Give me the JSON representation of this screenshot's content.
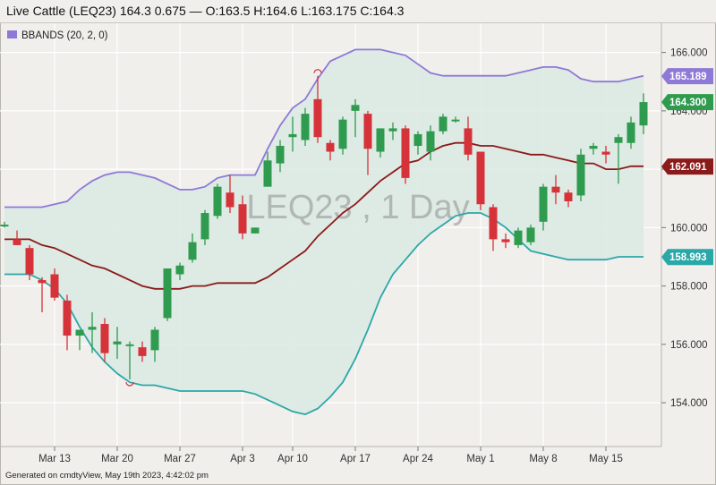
{
  "title": "Live Cattle (LEQ23) 164.3 0.675 — O:163.5 H:164.6 L:163.175 C:164.3",
  "footer": "Generated on cmdtyView, May 19th 2023, 4:42:02 pm",
  "watermark": "LEQ23 , 1 Day",
  "legend": {
    "label": "BBANDS (20, 2, 0)",
    "color": "#8e79d6"
  },
  "colors": {
    "up": "#2e9b4f",
    "down": "#d6323a",
    "upper_band": "#8e79d6",
    "middle_band": "#8b1a1a",
    "lower_band": "#2aa8a8",
    "band_fill": "#dbe9e3",
    "background": "#f1efeb",
    "grid": "#ffffff"
  },
  "price_labels": [
    {
      "value": 165.189,
      "text": "165.189",
      "color": "#8e79d6"
    },
    {
      "value": 164.3,
      "text": "164.300",
      "color": "#2e9b4f"
    },
    {
      "value": 162.091,
      "text": "162.091",
      "color": "#8b1a1a"
    },
    {
      "value": 158.993,
      "text": "158.993",
      "color": "#2aa8a8"
    }
  ],
  "chart_data": {
    "type": "candlestick",
    "y_axis": {
      "min": 152.5,
      "max": 167,
      "ticks": [
        154.0,
        156.0,
        158.0,
        160.0,
        162.0,
        164.0,
        166.0
      ],
      "tick_labels": [
        "154.000",
        "156.000",
        "158.000",
        "160.000",
        "162.000",
        "164.000",
        "166.000"
      ]
    },
    "x_axis_labels": [
      {
        "date": "2023-03-13",
        "label": "Mar 13"
      },
      {
        "date": "2023-03-20",
        "label": "Mar 20"
      },
      {
        "date": "2023-03-27",
        "label": "Mar 27"
      },
      {
        "date": "2023-04-03",
        "label": "Apr 3"
      },
      {
        "date": "2023-04-10",
        "label": "Apr 10"
      },
      {
        "date": "2023-04-17",
        "label": "Apr 17"
      },
      {
        "date": "2023-04-24",
        "label": "Apr 24"
      },
      {
        "date": "2023-05-01",
        "label": "May 1"
      },
      {
        "date": "2023-05-08",
        "label": "May 8"
      },
      {
        "date": "2023-05-15",
        "label": "May 15"
      }
    ],
    "grid": true,
    "legend": "top-left",
    "candles": [
      {
        "date": "2023-03-07",
        "open": 160.1,
        "high": 160.2,
        "low": 160.0,
        "close": 160.1
      },
      {
        "date": "2023-03-08",
        "open": 159.6,
        "high": 159.9,
        "low": 159.4,
        "close": 159.4
      },
      {
        "date": "2023-03-09",
        "open": 159.3,
        "high": 159.4,
        "low": 158.2,
        "close": 158.4
      },
      {
        "date": "2023-03-10",
        "open": 158.2,
        "high": 158.3,
        "low": 157.1,
        "close": 158.1
      },
      {
        "date": "2023-03-13",
        "open": 158.4,
        "high": 158.6,
        "low": 157.5,
        "close": 157.6
      },
      {
        "date": "2023-03-14",
        "open": 157.5,
        "high": 157.7,
        "low": 155.8,
        "close": 156.3
      },
      {
        "date": "2023-03-15",
        "open": 156.3,
        "high": 156.5,
        "low": 155.8,
        "close": 156.5
      },
      {
        "date": "2023-03-16",
        "open": 156.5,
        "high": 157.1,
        "low": 155.7,
        "close": 156.6
      },
      {
        "date": "2023-03-17",
        "open": 156.7,
        "high": 156.9,
        "low": 155.4,
        "close": 155.7
      },
      {
        "date": "2023-03-20",
        "open": 156.0,
        "high": 156.6,
        "low": 155.5,
        "close": 156.1
      },
      {
        "date": "2023-03-21",
        "open": 156.0,
        "high": 156.1,
        "low": 154.8,
        "close": 156.0
      },
      {
        "date": "2023-03-22",
        "open": 155.9,
        "high": 156.1,
        "low": 155.4,
        "close": 155.6
      },
      {
        "date": "2023-03-23",
        "open": 155.8,
        "high": 156.6,
        "low": 155.4,
        "close": 156.5
      },
      {
        "date": "2023-03-24",
        "open": 156.9,
        "high": 158.6,
        "low": 156.8,
        "close": 158.6
      },
      {
        "date": "2023-03-27",
        "open": 158.4,
        "high": 158.8,
        "low": 158.2,
        "close": 158.7
      },
      {
        "date": "2023-03-28",
        "open": 158.9,
        "high": 159.8,
        "low": 158.8,
        "close": 159.5
      },
      {
        "date": "2023-03-29",
        "open": 159.6,
        "high": 160.6,
        "low": 159.4,
        "close": 160.5
      },
      {
        "date": "2023-03-30",
        "open": 160.4,
        "high": 161.5,
        "low": 160.3,
        "close": 161.4
      },
      {
        "date": "2023-03-31",
        "open": 161.2,
        "high": 161.8,
        "low": 160.5,
        "close": 160.7
      },
      {
        "date": "2023-04-03",
        "open": 160.8,
        "high": 161.1,
        "low": 159.6,
        "close": 159.8
      },
      {
        "date": "2023-04-04",
        "open": 159.8,
        "high": 160.0,
        "low": 159.8,
        "close": 160.0
      },
      {
        "date": "2023-04-05",
        "open": 161.4,
        "high": 162.6,
        "low": 161.4,
        "close": 162.3
      },
      {
        "date": "2023-04-06",
        "open": 162.2,
        "high": 163.0,
        "low": 161.9,
        "close": 162.8
      },
      {
        "date": "2023-04-10",
        "open": 163.1,
        "high": 163.8,
        "low": 162.6,
        "close": 163.2
      },
      {
        "date": "2023-04-11",
        "open": 163.0,
        "high": 164.1,
        "low": 162.8,
        "close": 163.9
      },
      {
        "date": "2023-04-12",
        "open": 164.4,
        "high": 165.2,
        "low": 162.9,
        "close": 163.1
      },
      {
        "date": "2023-04-13",
        "open": 162.9,
        "high": 163.0,
        "low": 162.3,
        "close": 162.6
      },
      {
        "date": "2023-04-14",
        "open": 162.7,
        "high": 163.8,
        "low": 162.5,
        "close": 163.7
      },
      {
        "date": "2023-04-17",
        "open": 164.0,
        "high": 164.4,
        "low": 163.1,
        "close": 164.2
      },
      {
        "date": "2023-04-18",
        "open": 163.9,
        "high": 164.0,
        "low": 161.8,
        "close": 162.7
      },
      {
        "date": "2023-04-19",
        "open": 162.6,
        "high": 163.4,
        "low": 162.4,
        "close": 163.4
      },
      {
        "date": "2023-04-20",
        "open": 163.3,
        "high": 163.6,
        "low": 163.0,
        "close": 163.4
      },
      {
        "date": "2023-04-21",
        "open": 163.4,
        "high": 163.5,
        "low": 161.5,
        "close": 161.7
      },
      {
        "date": "2023-04-24",
        "open": 162.8,
        "high": 163.3,
        "low": 162.5,
        "close": 163.2
      },
      {
        "date": "2023-04-25",
        "open": 162.6,
        "high": 163.5,
        "low": 162.3,
        "close": 163.3
      },
      {
        "date": "2023-04-26",
        "open": 163.3,
        "high": 163.9,
        "low": 163.2,
        "close": 163.8
      },
      {
        "date": "2023-04-27",
        "open": 163.7,
        "high": 163.8,
        "low": 163.6,
        "close": 163.7
      },
      {
        "date": "2023-04-28",
        "open": 163.4,
        "high": 163.8,
        "low": 162.3,
        "close": 162.5
      },
      {
        "date": "2023-05-01",
        "open": 162.6,
        "high": 162.6,
        "low": 160.6,
        "close": 160.8
      },
      {
        "date": "2023-05-02",
        "open": 160.7,
        "high": 160.8,
        "low": 159.2,
        "close": 159.6
      },
      {
        "date": "2023-05-03",
        "open": 159.6,
        "high": 159.8,
        "low": 159.3,
        "close": 159.5
      },
      {
        "date": "2023-05-04",
        "open": 159.4,
        "high": 160.0,
        "low": 159.3,
        "close": 159.9
      },
      {
        "date": "2023-05-05",
        "open": 159.5,
        "high": 160.1,
        "low": 159.4,
        "close": 160.0
      },
      {
        "date": "2023-05-08",
        "open": 160.2,
        "high": 161.5,
        "low": 159.9,
        "close": 161.4
      },
      {
        "date": "2023-05-09",
        "open": 161.4,
        "high": 161.8,
        "low": 160.8,
        "close": 161.2
      },
      {
        "date": "2023-05-10",
        "open": 161.2,
        "high": 161.3,
        "low": 160.7,
        "close": 160.9
      },
      {
        "date": "2023-05-11",
        "open": 161.1,
        "high": 162.7,
        "low": 160.9,
        "close": 162.5
      },
      {
        "date": "2023-05-12",
        "open": 162.7,
        "high": 162.9,
        "low": 162.5,
        "close": 162.8
      },
      {
        "date": "2023-05-15",
        "open": 162.6,
        "high": 162.8,
        "low": 162.2,
        "close": 162.5
      },
      {
        "date": "2023-05-16",
        "open": 162.9,
        "high": 163.2,
        "low": 161.5,
        "close": 163.1
      },
      {
        "date": "2023-05-17",
        "open": 162.9,
        "high": 163.8,
        "low": 162.7,
        "close": 163.6
      },
      {
        "date": "2023-05-18",
        "open": 163.5,
        "high": 164.6,
        "low": 163.2,
        "close": 164.3
      }
    ],
    "series": [
      {
        "name": "BBANDS (20, 2, 0)",
        "band": "upper",
        "values": [
          160.7,
          160.7,
          160.7,
          160.7,
          160.8,
          160.9,
          161.3,
          161.6,
          161.8,
          161.9,
          161.9,
          161.8,
          161.7,
          161.5,
          161.3,
          161.3,
          161.4,
          161.7,
          161.8,
          161.8,
          161.8,
          162.7,
          163.5,
          164.1,
          164.4,
          165.1,
          165.7,
          165.9,
          166.1,
          166.1,
          166.1,
          166.0,
          165.9,
          165.6,
          165.3,
          165.2,
          165.2,
          165.2,
          165.2,
          165.2,
          165.2,
          165.3,
          165.4,
          165.5,
          165.5,
          165.4,
          165.1,
          165.0,
          165.0,
          165.0,
          165.1,
          165.2
        ]
      },
      {
        "name": "BBANDS (20, 2, 0)",
        "band": "middle",
        "values": [
          159.6,
          159.6,
          159.6,
          159.4,
          159.3,
          159.1,
          158.9,
          158.7,
          158.6,
          158.4,
          158.2,
          158.0,
          157.9,
          157.9,
          157.9,
          158.0,
          158.0,
          158.1,
          158.1,
          158.1,
          158.1,
          158.3,
          158.6,
          158.9,
          159.2,
          159.7,
          160.1,
          160.5,
          160.8,
          161.2,
          161.6,
          161.9,
          162.2,
          162.3,
          162.6,
          162.8,
          162.9,
          162.9,
          162.8,
          162.8,
          162.7,
          162.6,
          162.5,
          162.5,
          162.4,
          162.3,
          162.2,
          162.2,
          162.0,
          162.0,
          162.1,
          162.1
        ]
      },
      {
        "name": "BBANDS (20, 2, 0)",
        "band": "lower",
        "values": [
          158.4,
          158.4,
          158.4,
          158.2,
          157.9,
          157.4,
          156.6,
          155.9,
          155.4,
          155.0,
          154.7,
          154.6,
          154.6,
          154.5,
          154.4,
          154.4,
          154.4,
          154.4,
          154.4,
          154.4,
          154.3,
          154.1,
          153.9,
          153.7,
          153.6,
          153.8,
          154.2,
          154.7,
          155.5,
          156.5,
          157.6,
          158.4,
          158.9,
          159.4,
          159.8,
          160.1,
          160.4,
          160.5,
          160.5,
          160.3,
          160.0,
          159.6,
          159.2,
          159.1,
          159.0,
          158.9,
          158.9,
          158.9,
          158.9,
          159.0,
          159.0,
          159.0
        ]
      }
    ]
  }
}
